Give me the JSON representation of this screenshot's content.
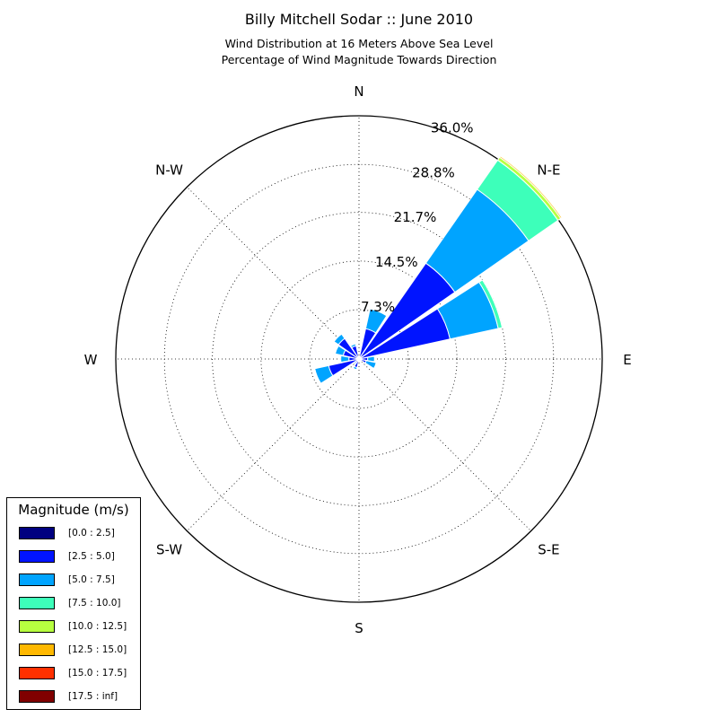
{
  "title": "Billy Mitchell Sodar :: June 2010",
  "subtitle_line1": "Wind Distribution at 16 Meters Above Sea Level",
  "subtitle_line2": "Percentage of Wind Magnitude Towards Direction",
  "chart_data": {
    "type": "windrose",
    "title": "Billy Mitchell Sodar :: June 2010",
    "subtitle": "Wind Distribution at 16 Meters Above Sea Level / Percentage of Wind Magnitude Towards Direction",
    "radial_unit": "%",
    "radial_max": 36.0,
    "radial_ticks": [
      7.3,
      14.5,
      21.7,
      28.8,
      36.0
    ],
    "radial_tick_labels": [
      "7.3%",
      "14.5%",
      "21.7%",
      "28.8%",
      "36.0%"
    ],
    "direction_labels": [
      "N",
      "N-E",
      "E",
      "S-E",
      "S",
      "S-W",
      "W",
      "N-W"
    ],
    "grid": true,
    "legend_title": "Magnitude (m/s)",
    "legend_position": "lower-left",
    "bins": [
      {
        "label": "[0.0 : 2.5]",
        "color": "#000080"
      },
      {
        "label": "[2.5 : 5.0]",
        "color": "#0014ff"
      },
      {
        "label": "[5.0 : 7.5]",
        "color": "#00a4ff"
      },
      {
        "label": "[7.5 : 10.0]",
        "color": "#3dffba"
      },
      {
        "label": "[10.0 : 12.5]",
        "color": "#b7ff40"
      },
      {
        "label": "[12.5 : 15.0]",
        "color": "#ffb800"
      },
      {
        "label": "[15.0 : 17.5]",
        "color": "#ff3000"
      },
      {
        "label": "[17.5 : inf]",
        "color": "#800000"
      }
    ],
    "sectors": [
      {
        "direction_deg": 0,
        "values": [
          0,
          0.1,
          0.1,
          0,
          0,
          0,
          0,
          0
        ]
      },
      {
        "direction_deg": 22.5,
        "values": [
          0.2,
          4.4,
          3.0,
          0,
          0,
          0,
          0,
          0
        ]
      },
      {
        "direction_deg": 45,
        "values": [
          0.3,
          17.0,
          13.3,
          5.3,
          0.5,
          0.2,
          0,
          0
        ]
      },
      {
        "direction_deg": 67.5,
        "values": [
          0.3,
          13.5,
          7.3,
          0.6,
          0,
          0,
          0,
          0
        ]
      },
      {
        "direction_deg": 90,
        "values": [
          0.1,
          1.2,
          1.0,
          0,
          0,
          0,
          0,
          0
        ]
      },
      {
        "direction_deg": 112.5,
        "values": [
          0.1,
          1.0,
          1.5,
          0,
          0,
          0,
          0,
          0
        ]
      },
      {
        "direction_deg": 135,
        "values": [
          0,
          0.3,
          0.2,
          0,
          0,
          0,
          0,
          0
        ]
      },
      {
        "direction_deg": 157.5,
        "values": [
          0,
          0.1,
          0.1,
          0,
          0,
          0,
          0,
          0
        ]
      },
      {
        "direction_deg": 180,
        "values": [
          0,
          0.1,
          0,
          0,
          0,
          0,
          0,
          0
        ]
      },
      {
        "direction_deg": 202.5,
        "values": [
          0.1,
          1.2,
          0.3,
          0,
          0,
          0,
          0,
          0
        ]
      },
      {
        "direction_deg": 225,
        "values": [
          0.1,
          0.6,
          0.2,
          0,
          0,
          0,
          0,
          0
        ]
      },
      {
        "direction_deg": 247.5,
        "values": [
          0.2,
          4.4,
          2.1,
          0,
          0,
          0,
          0,
          0
        ]
      },
      {
        "direction_deg": 270,
        "values": [
          0.1,
          1.4,
          1.2,
          0,
          0,
          0,
          0,
          0
        ]
      },
      {
        "direction_deg": 292.5,
        "values": [
          0.2,
          2.2,
          1.2,
          0,
          0,
          0,
          0,
          0
        ]
      },
      {
        "direction_deg": 315,
        "values": [
          0.2,
          3.5,
          0.8,
          0,
          0,
          0,
          0,
          0
        ]
      },
      {
        "direction_deg": 337.5,
        "values": [
          0.2,
          1.8,
          0.3,
          0,
          0,
          0,
          0,
          0
        ]
      }
    ]
  }
}
